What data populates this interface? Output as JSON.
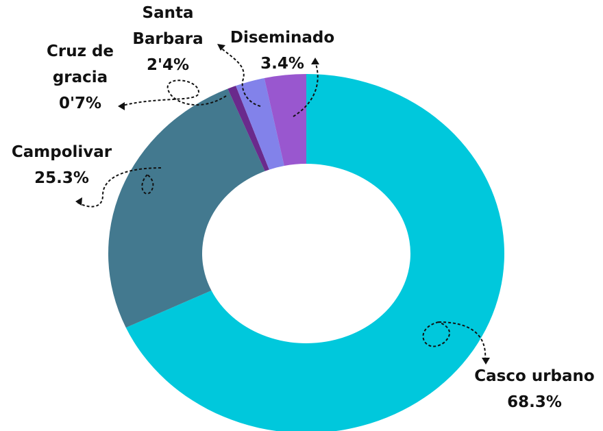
{
  "chart_data": {
    "type": "donut",
    "categories": [
      "Casco urbano",
      "Campolivar",
      "Cruz de gracia",
      "Santa Barbara",
      "Diseminado"
    ],
    "values": [
      68.3,
      25.3,
      0.7,
      2.4,
      3.4
    ],
    "value_labels": [
      "68.3%",
      "25.3%",
      "0'7%",
      "2'4%",
      "3.4%"
    ],
    "colors": [
      "#00c8dc",
      "#43798f",
      "#6a2a8c",
      "#8282ea",
      "#9957cf"
    ]
  }
}
